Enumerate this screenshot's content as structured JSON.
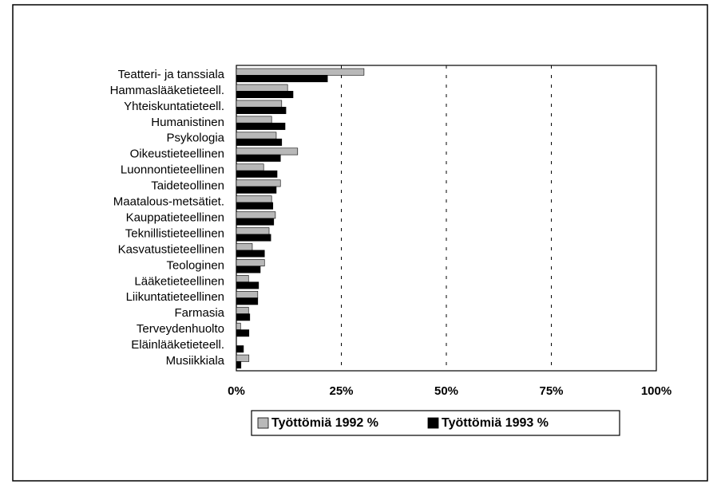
{
  "chart_data": {
    "type": "barh",
    "categories": [
      "Teatteri- ja tanssiala",
      "Hammaslääketieteell.",
      "Yhteiskuntatieteell.",
      "Humanistinen",
      "Psykologia",
      "Oikeustieteellinen",
      "Luonnontieteellinen",
      "Taideteollinen",
      "Maatalous-metsätiet.",
      "Kauppatieteellinen",
      "Teknillistieteellinen",
      "Kasvatustieteellinen",
      "Teologinen",
      "Lääketieteellinen",
      "Liikuntatieteellinen",
      "Farmasia",
      "Terveydenhuolto",
      "Eläinlääketieteell.",
      "Musiikkiala"
    ],
    "series": [
      {
        "name": "Työttömiä 1992 %",
        "color": "#b8b8b8",
        "values": [
          30.4,
          12.2,
          10.8,
          8.4,
          9.5,
          14.6,
          6.5,
          10.5,
          8.4,
          9.3,
          7.8,
          3.8,
          6.7,
          2.9,
          5.1,
          2.9,
          1.0,
          0,
          3.0
        ]
      },
      {
        "name": "Työttömiä 1993 %",
        "color": "#000000",
        "values": [
          21.7,
          13.5,
          11.8,
          11.6,
          10.8,
          10.5,
          9.7,
          9.5,
          8.7,
          8.9,
          8.2,
          6.7,
          5.7,
          5.3,
          5.1,
          3.2,
          3.0,
          1.7,
          1.1
        ]
      }
    ],
    "xlim": [
      0,
      100
    ],
    "xticks": [
      {
        "value": 0,
        "label": "0%"
      },
      {
        "value": 25,
        "label": "25%"
      },
      {
        "value": 50,
        "label": "50%"
      },
      {
        "value": 75,
        "label": "75%"
      },
      {
        "value": 100,
        "label": "100%"
      }
    ],
    "grid": true,
    "legend": "bottom"
  }
}
